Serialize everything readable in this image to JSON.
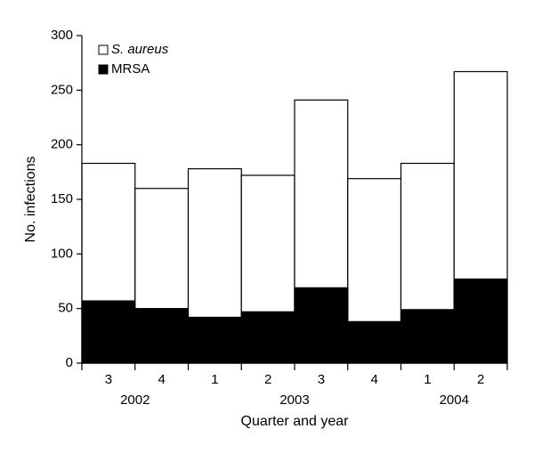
{
  "chart_data": {
    "type": "overlaid-bar",
    "y_label": "No. infections",
    "x_label": "Quarter and year",
    "groups": [
      {
        "label": "2002",
        "categories": [
          "3",
          "4"
        ]
      },
      {
        "label": "2003",
        "categories": [
          "1",
          "2",
          "3",
          "4"
        ]
      },
      {
        "label": "2004",
        "categories": [
          "1",
          "2"
        ]
      }
    ],
    "series": [
      {
        "name": "S. aureus",
        "color": "#ffffff",
        "values": [
          183,
          160,
          178,
          172,
          241,
          169,
          183,
          267
        ]
      },
      {
        "name": "MRSA",
        "color": "#000000",
        "values": [
          57,
          50,
          42,
          47,
          69,
          38,
          49,
          77
        ]
      }
    ],
    "ylim": [
      0,
      300
    ],
    "yticks": [
      0,
      50,
      100,
      150,
      200,
      250,
      300
    ],
    "legend": "upper-left"
  }
}
